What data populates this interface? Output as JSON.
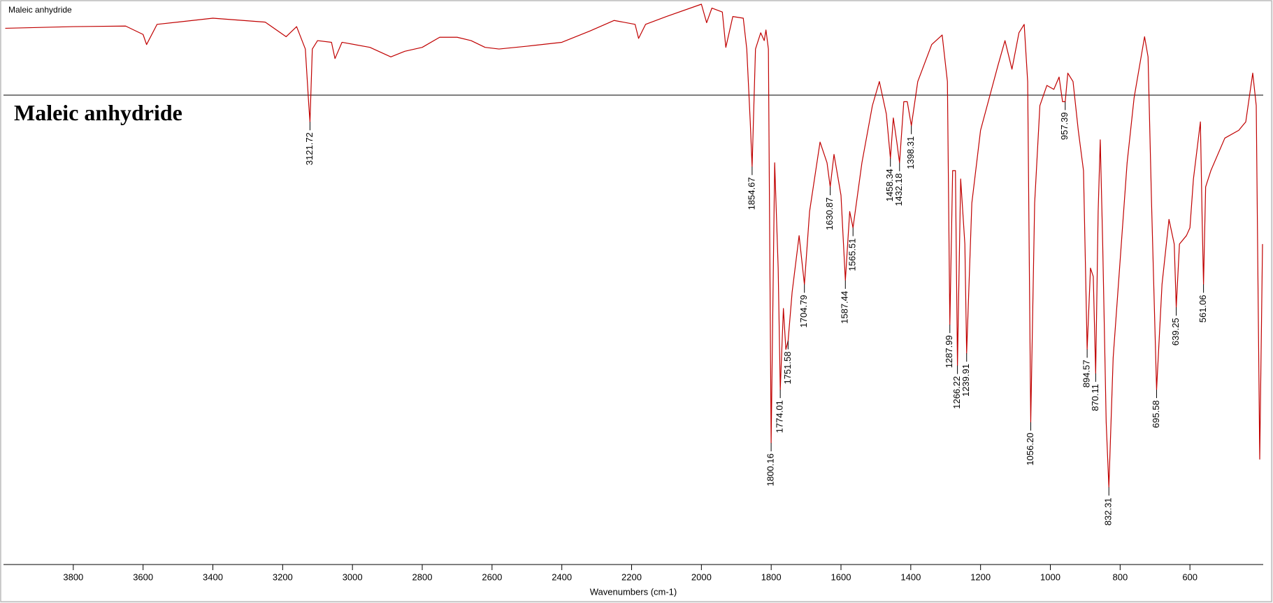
{
  "window_title": "Maleic anhydride",
  "chart_data": {
    "type": "line",
    "title": "Maleic anhydride",
    "x_label": "Wavenumbers (cm-1)",
    "xlim": [
      4000,
      390
    ],
    "ylim": [
      0,
      100
    ],
    "xticks": [
      3800,
      3600,
      3400,
      3200,
      3000,
      2800,
      2600,
      2400,
      2200,
      2000,
      1800,
      1600,
      1400,
      1200,
      1000,
      800,
      600
    ],
    "series": [
      {
        "name": "Maleic anhydride",
        "color": "#c00000",
        "x": [
          3995,
          3800,
          3650,
          3600,
          3590,
          3560,
          3400,
          3250,
          3190,
          3160,
          3135,
          3125,
          3121.72,
          3115,
          3100,
          3060,
          3050,
          3030,
          2950,
          2890,
          2850,
          2800,
          2750,
          2700,
          2660,
          2620,
          2580,
          2500,
          2400,
          2320,
          2250,
          2190,
          2180,
          2160,
          2100,
          2000,
          1985,
          1970,
          1940,
          1930,
          1910,
          1880,
          1870,
          1860,
          1854.67,
          1845,
          1830,
          1820,
          1815,
          1808,
          1800.16,
          1790,
          1780,
          1774.01,
          1765,
          1758,
          1751.58,
          1740,
          1720,
          1704.79,
          1690,
          1660,
          1640,
          1630.87,
          1620,
          1600,
          1587.44,
          1575,
          1565.51,
          1540,
          1510,
          1490,
          1470,
          1458.34,
          1450,
          1440,
          1432.18,
          1420,
          1410,
          1398.31,
          1380,
          1340,
          1310,
          1295,
          1287.99,
          1280,
          1272,
          1266.22,
          1257,
          1245,
          1239.91,
          1225,
          1200,
          1150,
          1130,
          1110,
          1090,
          1075,
          1065,
          1056.2,
          1045,
          1030,
          1010,
          990,
          975,
          965,
          957.39,
          950,
          935,
          920,
          905,
          894.57,
          885,
          877,
          870.11,
          863,
          857,
          850,
          840,
          832.31,
          820,
          800,
          780,
          760,
          730,
          720,
          710,
          695.58,
          680,
          660,
          645,
          639.25,
          630,
          610,
          600,
          590,
          570,
          565,
          561.06,
          555,
          540,
          500,
          460,
          440,
          420,
          410,
          400,
          392
        ],
        "values": [
          95.7,
          96,
          96.1,
          94.6,
          92.8,
          96.4,
          97.5,
          96.8,
          94.2,
          96,
          92,
          81.9,
          79,
          92,
          93.5,
          93.2,
          90.3,
          93.2,
          92.3,
          90.6,
          91.6,
          92.3,
          94.1,
          94.1,
          93.5,
          92.3,
          92,
          92.5,
          93.2,
          95.2,
          97.1,
          96.4,
          93.9,
          96.4,
          97.8,
          100,
          96.7,
          99.3,
          98.6,
          92.3,
          97.8,
          97.5,
          92,
          79,
          71,
          92,
          94.9,
          93.5,
          95.4,
          92,
          21.7,
          71.7,
          52.9,
          31.2,
          45.7,
          38.4,
          39.9,
          48.6,
          58.7,
          50,
          63,
          75.4,
          71.7,
          67.4,
          73.2,
          65.9,
          50.7,
          63,
          60.1,
          71.7,
          81.9,
          86.2,
          80.4,
          72.5,
          79.7,
          75.4,
          71.7,
          82.6,
          82.6,
          78.3,
          86.2,
          92.8,
          94.5,
          86.2,
          42.8,
          70.3,
          70.3,
          35.5,
          68.8,
          57.2,
          37.7,
          64.5,
          77.5,
          89.1,
          93.5,
          88.4,
          94.9,
          96.4,
          86.2,
          25.4,
          64.5,
          81.9,
          85.5,
          84.8,
          87,
          82.6,
          82.6,
          87.7,
          86.2,
          77.5,
          70.3,
          38.4,
          52.9,
          51.4,
          34.1,
          63,
          75.8,
          57.2,
          25.4,
          13.8,
          36.9,
          54.3,
          71.7,
          83.3,
          94.2,
          90.6,
          64.5,
          31.2,
          50,
          61.6,
          57.2,
          45.9,
          57.2,
          58.7,
          60.1,
          68.8,
          79,
          61.6,
          50,
          67.4,
          70.3,
          76.1,
          77.5,
          79,
          87.7,
          81.9,
          18.8,
          57.2
        ]
      }
    ],
    "peaks": [
      {
        "x": 3121.72,
        "y": 79,
        "label": "3121.72"
      },
      {
        "x": 1854.67,
        "y": 71,
        "label": "1854.67"
      },
      {
        "x": 1800.16,
        "y": 21.7,
        "label": "1800.16"
      },
      {
        "x": 1774.01,
        "y": 31.2,
        "label": "1774.01"
      },
      {
        "x": 1751.58,
        "y": 39.9,
        "label": "1751.58"
      },
      {
        "x": 1704.79,
        "y": 50,
        "label": "1704.79"
      },
      {
        "x": 1630.87,
        "y": 67.4,
        "label": "1630.87"
      },
      {
        "x": 1587.44,
        "y": 50.7,
        "label": "1587.44"
      },
      {
        "x": 1565.51,
        "y": 60.1,
        "label": "1565.51"
      },
      {
        "x": 1458.34,
        "y": 72.5,
        "label": "1458.34"
      },
      {
        "x": 1432.18,
        "y": 71.7,
        "label": "1432.18"
      },
      {
        "x": 1398.31,
        "y": 78.3,
        "label": "1398.31"
      },
      {
        "x": 1287.99,
        "y": 42.8,
        "label": "1287.99"
      },
      {
        "x": 1266.22,
        "y": 35.5,
        "label": "1266.22"
      },
      {
        "x": 1239.91,
        "y": 37.7,
        "label": "1239.91"
      },
      {
        "x": 1056.2,
        "y": 25.4,
        "label": "1056.20"
      },
      {
        "x": 957.39,
        "y": 82.6,
        "label": "957.39"
      },
      {
        "x": 894.57,
        "y": 38.4,
        "label": "894.57"
      },
      {
        "x": 870.11,
        "y": 34.1,
        "label": "870.11"
      },
      {
        "x": 832.31,
        "y": 13.8,
        "label": "832.31"
      },
      {
        "x": 695.58,
        "y": 31.2,
        "label": "695.58"
      },
      {
        "x": 639.25,
        "y": 45.9,
        "label": "639.25"
      },
      {
        "x": 561.06,
        "y": 50,
        "label": "561.06"
      }
    ]
  }
}
